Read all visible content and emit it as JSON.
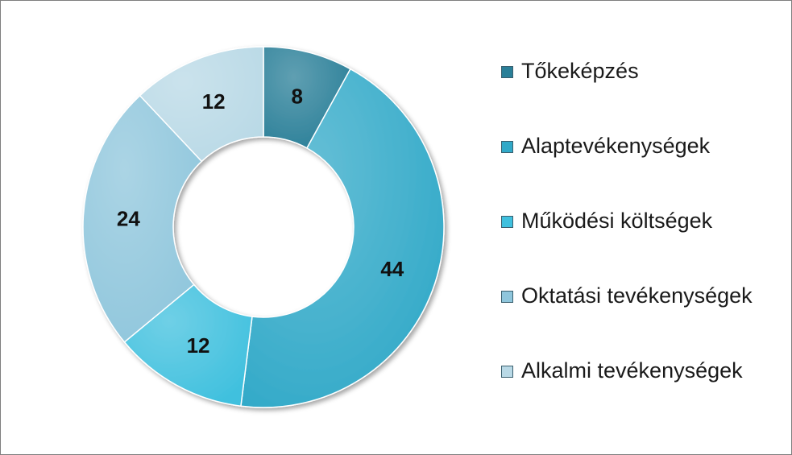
{
  "chart_data": {
    "type": "pie",
    "variant": "donut",
    "title": "",
    "categories": [
      "Tőkeképzés",
      "Alaptevékenységek",
      "Működési költségek",
      "Oktatási tevékenységek",
      "Alkalmi tevékenységek"
    ],
    "values": [
      8,
      44,
      12,
      24,
      12
    ],
    "colors": [
      "#2a7f98",
      "#31a9c8",
      "#3fc0de",
      "#8fc6dc",
      "#b9d9e6"
    ],
    "legend": "right",
    "data_labels": [
      "8",
      "44",
      "12",
      "24",
      "12"
    ]
  }
}
